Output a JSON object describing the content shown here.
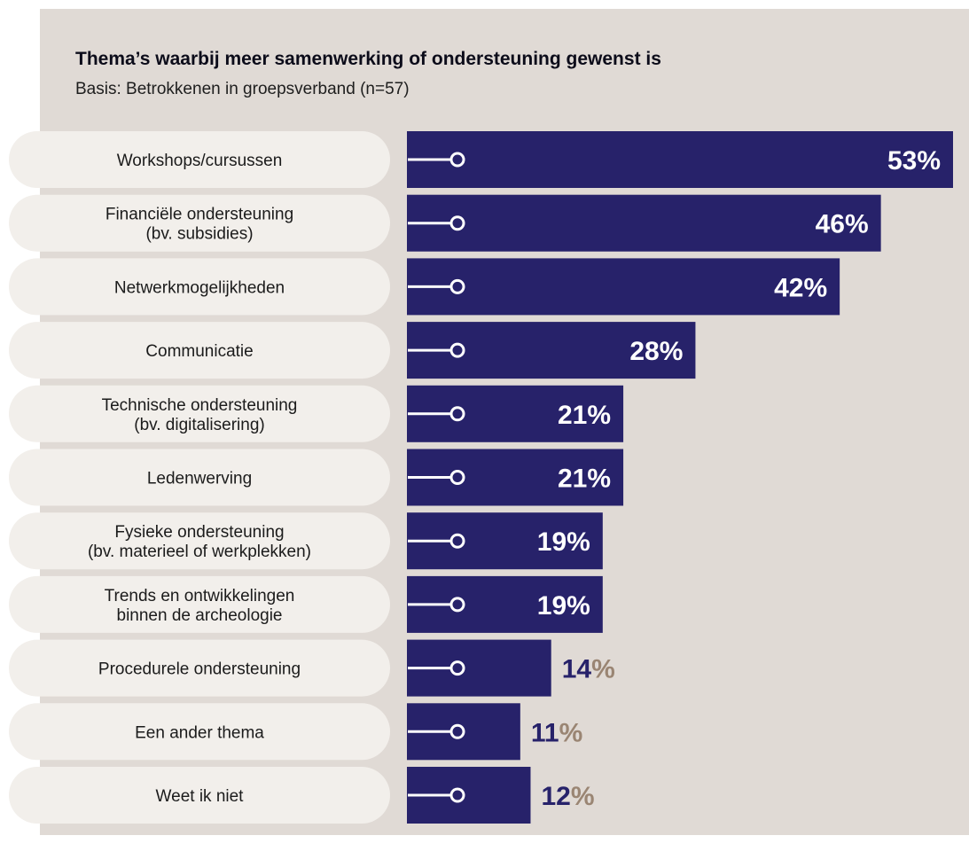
{
  "colors": {
    "panel": "#e0dad5",
    "pill": "#f2efeb",
    "bar": "#27226a",
    "value_inside": "#ffffff",
    "value_outside": "#27226a",
    "percent_outside": "#9a8573"
  },
  "chart_data": {
    "type": "bar",
    "orientation": "horizontal",
    "title": "Thema’s waarbij meer samenwerking of ondersteuning gewenst is",
    "subtitle": "Basis: Betrokkenen in groepsverband (n=57)",
    "unit": "%",
    "categories": [
      [
        "Workshops/cursussen"
      ],
      [
        "Financiële ondersteuning",
        "(bv. subsidies)"
      ],
      [
        "Netwerkmogelijkheden"
      ],
      [
        "Communicatie"
      ],
      [
        "Technische ondersteuning",
        "(bv. digitalisering)"
      ],
      [
        "Ledenwerving"
      ],
      [
        "Fysieke ondersteuning",
        "(bv. materieel of werkplekken)"
      ],
      [
        "Trends en ontwikkelingen",
        "binnen de archeologie"
      ],
      [
        "Procedurele ondersteuning"
      ],
      [
        "Een ander thema"
      ],
      [
        "Weet ik niet"
      ]
    ],
    "values": [
      53,
      46,
      42,
      28,
      21,
      21,
      19,
      19,
      14,
      11,
      12
    ],
    "xlim": [
      0,
      53
    ],
    "grid": false,
    "legend": "none"
  }
}
